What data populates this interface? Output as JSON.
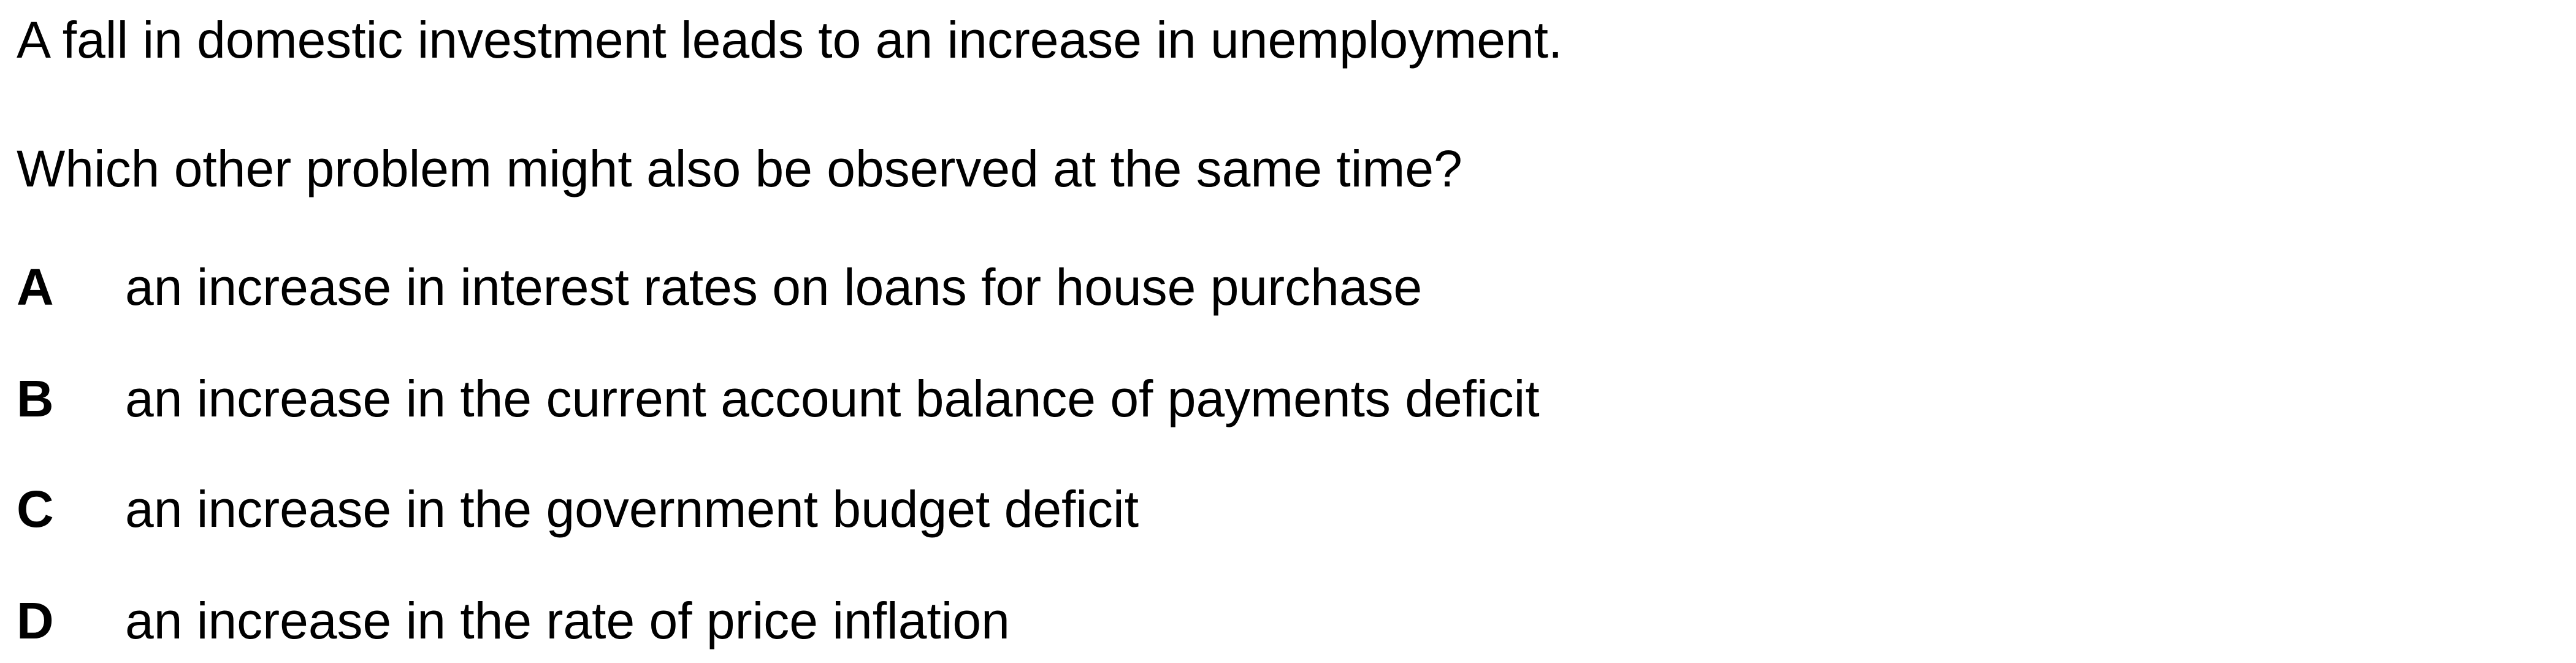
{
  "question": {
    "stem": "A fall in domestic investment leads to an increase in unemployment.",
    "prompt": "Which other problem might also be observed at the same time?",
    "options": [
      {
        "letter": "A",
        "text": "an increase in interest rates on loans for house purchase"
      },
      {
        "letter": "B",
        "text": "an increase in the current account balance of payments deficit"
      },
      {
        "letter": "C",
        "text": "an increase in the government budget deficit"
      },
      {
        "letter": "D",
        "text": "an increase in the rate of price inflation"
      }
    ]
  }
}
